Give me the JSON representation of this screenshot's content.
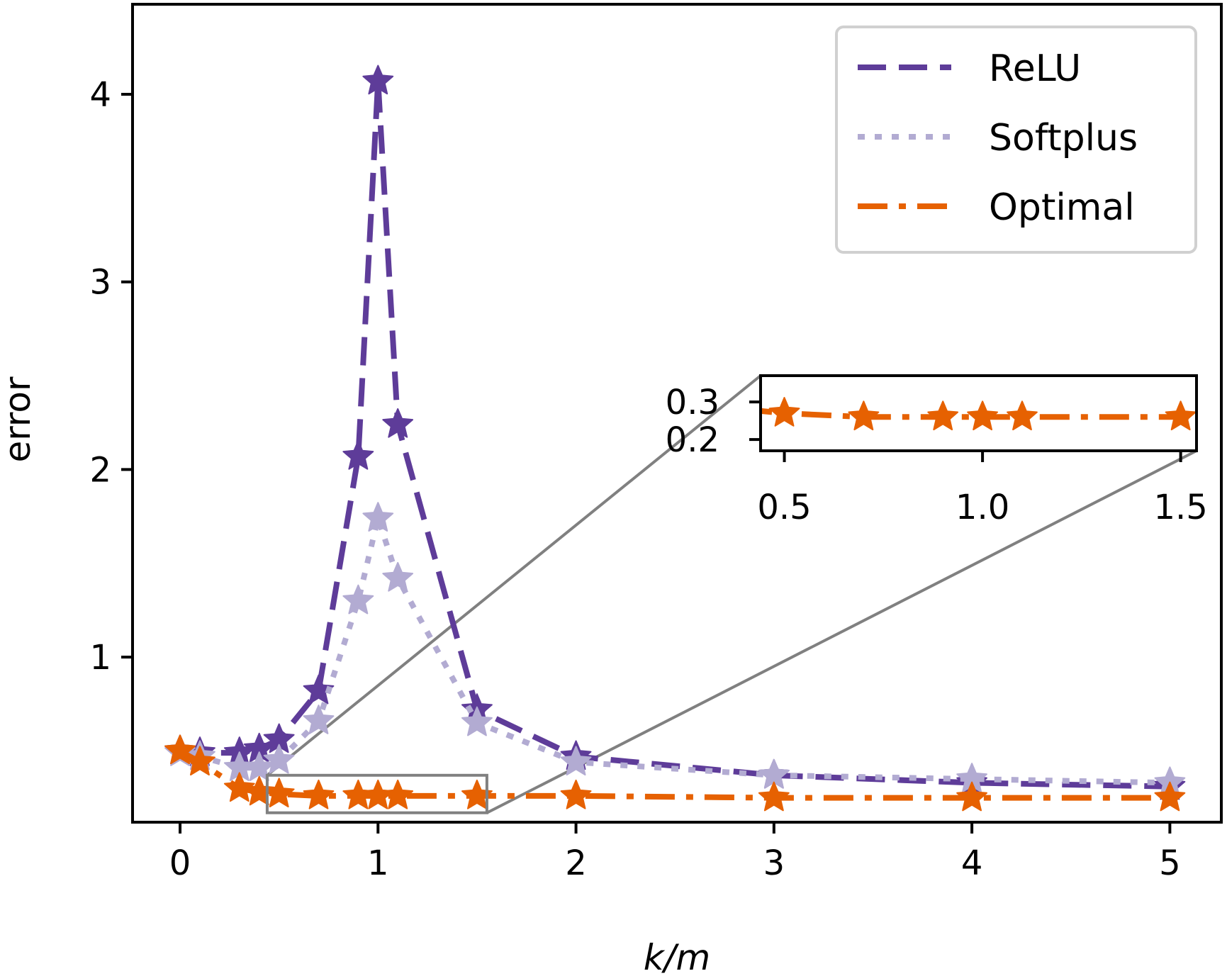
{
  "chart_data": {
    "type": "line",
    "xlabel": "k/m",
    "ylabel": "error",
    "xlim": [
      -0.24,
      5.26
    ],
    "ylim": [
      0.12,
      4.48
    ],
    "xticks": [
      "0",
      "1",
      "2",
      "3",
      "4",
      "5"
    ],
    "yticks": [
      "1",
      "2",
      "3",
      "4"
    ],
    "legend_position": "top-right",
    "series": [
      {
        "name": "ReLU",
        "color": "#5e3c99",
        "linestyle": "dashed",
        "marker": "star",
        "x": [
          0,
          0.1,
          0.3,
          0.4,
          0.5,
          0.7,
          0.9,
          1.0,
          1.1,
          1.5,
          2,
          3,
          4,
          5
        ],
        "y": [
          0.5,
          0.49,
          0.49,
          0.51,
          0.56,
          0.82,
          2.07,
          4.07,
          2.24,
          0.72,
          0.47,
          0.37,
          0.33,
          0.31
        ]
      },
      {
        "name": "Softplus",
        "color": "#b2abd2",
        "linestyle": "dotted",
        "marker": "star",
        "x": [
          0,
          0.1,
          0.3,
          0.4,
          0.5,
          0.7,
          0.9,
          1.0,
          1.1,
          1.5,
          2,
          3,
          4,
          5
        ],
        "y": [
          0.49,
          0.47,
          0.41,
          0.41,
          0.45,
          0.66,
          1.3,
          1.74,
          1.42,
          0.65,
          0.44,
          0.37,
          0.35,
          0.33
        ]
      },
      {
        "name": "Optimal",
        "color": "#e66101",
        "linestyle": "dashdot",
        "marker": "star",
        "x": [
          0,
          0.1,
          0.3,
          0.4,
          0.5,
          0.7,
          0.9,
          1.0,
          1.1,
          1.5,
          2,
          3,
          4,
          5
        ],
        "y": [
          0.5,
          0.44,
          0.3,
          0.28,
          0.27,
          0.26,
          0.26,
          0.26,
          0.26,
          0.26,
          0.26,
          0.25,
          0.25,
          0.25
        ]
      }
    ],
    "inset": {
      "xlim": [
        0.44,
        1.54
      ],
      "ylim": [
        0.17,
        0.37
      ],
      "xticks": [
        "0.5",
        "1.0",
        "1.5"
      ],
      "yticks": [
        "0.2",
        "0.3"
      ],
      "series_name": "Optimal",
      "zoom_region": {
        "x": [
          0.44,
          1.55
        ],
        "y": [
          0.17,
          0.37
        ]
      }
    }
  }
}
